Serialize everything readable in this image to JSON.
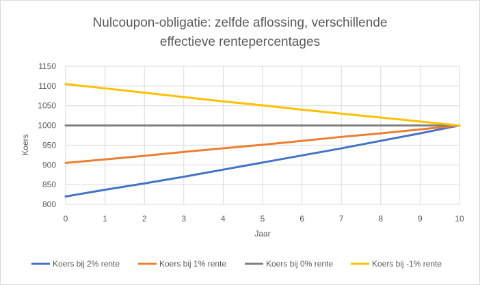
{
  "chart_data": {
    "type": "line",
    "title_lines": [
      "Nulcoupon-obligatie: zelfde aflossing, verschillende",
      "effectieve rentepercentages"
    ],
    "xlabel": "Jaar",
    "ylabel": "Koers",
    "x": [
      0,
      1,
      2,
      3,
      4,
      5,
      6,
      7,
      8,
      9,
      10
    ],
    "xlim": [
      0,
      10
    ],
    "ylim": [
      800,
      1150
    ],
    "yticks": [
      800,
      850,
      900,
      950,
      1000,
      1050,
      1100,
      1150
    ],
    "grid": true,
    "legend_position": "bottom",
    "series": [
      {
        "name": "Koers bij 2% rente",
        "color": "#4472C4",
        "values": [
          820,
          837,
          853,
          870,
          888,
          906,
          924,
          942,
          961,
          980,
          1000
        ]
      },
      {
        "name": "Koers bij 1% rente",
        "color": "#ED7D31",
        "values": [
          905,
          914,
          923,
          933,
          942,
          951,
          961,
          971,
          980,
          990,
          1000
        ]
      },
      {
        "name": "Koers bij 0% rente",
        "color": "#7F7F7F",
        "values": [
          1000,
          1000,
          1000,
          1000,
          1000,
          1000,
          1000,
          1000,
          1000,
          1000,
          1000
        ]
      },
      {
        "name": "Koers bij -1% rente",
        "color": "#FFC000",
        "values": [
          1105,
          1094,
          1083,
          1072,
          1061,
          1051,
          1040,
          1030,
          1020,
          1010,
          1000
        ]
      }
    ]
  }
}
